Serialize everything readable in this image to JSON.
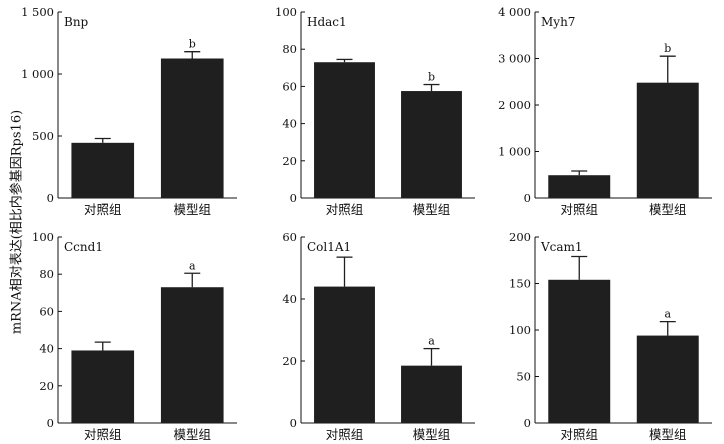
{
  "shared_ylabel": "mRNA相对表达(相比内参基因Rps16)",
  "chart_data": [
    {
      "type": "bar",
      "title": "Bnp",
      "categories": [
        "对照组",
        "模型组"
      ],
      "values": [
        445,
        1125
      ],
      "errors": [
        35,
        55
      ],
      "significance": [
        "",
        "b"
      ],
      "ylim": [
        0,
        1500
      ],
      "yticks": [
        0,
        500,
        1000,
        1500
      ],
      "ytick_labels": [
        "0",
        "500",
        "1 000",
        "1 500"
      ]
    },
    {
      "type": "bar",
      "title": "Hdac1",
      "categories": [
        "对照组",
        "模型组"
      ],
      "values": [
        73,
        57.5
      ],
      "errors": [
        1.5,
        3.5
      ],
      "significance": [
        "",
        "b"
      ],
      "ylim": [
        0,
        100
      ],
      "yticks": [
        0,
        20,
        40,
        60,
        80,
        100
      ],
      "ytick_labels": [
        "0",
        "20",
        "40",
        "60",
        "80",
        "100"
      ]
    },
    {
      "type": "bar",
      "title": "Myh7",
      "categories": [
        "对照组",
        "模型组"
      ],
      "values": [
        490,
        2480
      ],
      "errors": [
        90,
        570
      ],
      "significance": [
        "",
        "b"
      ],
      "ylim": [
        0,
        4000
      ],
      "yticks": [
        0,
        1000,
        2000,
        3000,
        4000
      ],
      "ytick_labels": [
        "0",
        "1 000",
        "2 000",
        "3 000",
        "4 000"
      ]
    },
    {
      "type": "bar",
      "title": "Ccnd1",
      "categories": [
        "对照组",
        "模型组"
      ],
      "values": [
        39,
        73
      ],
      "errors": [
        4.5,
        7.5
      ],
      "significance": [
        "",
        "a"
      ],
      "ylim": [
        0,
        100
      ],
      "yticks": [
        0,
        20,
        40,
        60,
        80,
        100
      ],
      "ytick_labels": [
        "0",
        "20",
        "40",
        "60",
        "80",
        "100"
      ]
    },
    {
      "type": "bar",
      "title": "Col1A1",
      "categories": [
        "对照组",
        "模型组"
      ],
      "values": [
        44,
        18.5
      ],
      "errors": [
        9.5,
        5.5
      ],
      "significance": [
        "",
        "a"
      ],
      "ylim": [
        0,
        60
      ],
      "yticks": [
        0,
        20,
        40,
        60
      ],
      "ytick_labels": [
        "0",
        "20",
        "40",
        "60"
      ]
    },
    {
      "type": "bar",
      "title": "Vcam1",
      "categories": [
        "对照组",
        "模型组"
      ],
      "values": [
        154,
        94
      ],
      "errors": [
        25,
        15
      ],
      "significance": [
        "",
        "a"
      ],
      "ylim": [
        0,
        200
      ],
      "yticks": [
        0,
        50,
        100,
        150,
        200
      ],
      "ytick_labels": [
        "0",
        "50",
        "100",
        "150",
        "200"
      ]
    }
  ],
  "colors": {
    "bar": "#1f1f1f",
    "axis": "#111111",
    "text": "#111111"
  }
}
